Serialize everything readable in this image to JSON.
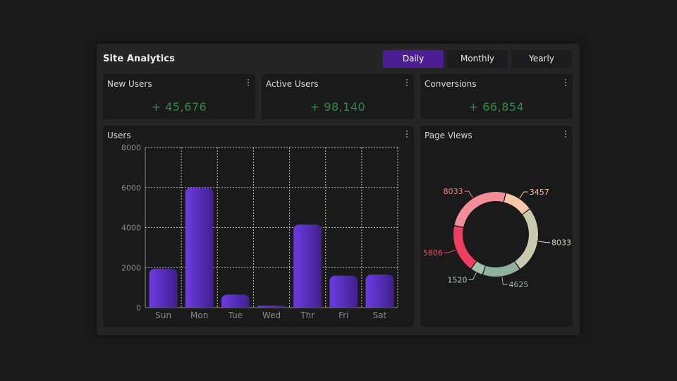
{
  "dashboard": {
    "title": "Site Analytics",
    "tabs": [
      {
        "label": "Daily",
        "active": true
      },
      {
        "label": "Monthly",
        "active": false
      },
      {
        "label": "Yearly",
        "active": false
      }
    ]
  },
  "stats": [
    {
      "title": "New Users",
      "value": "+ 45,676"
    },
    {
      "title": "Active Users",
      "value": "+ 98,140"
    },
    {
      "title": "Conversions",
      "value": "+ 66,854"
    }
  ],
  "users_card": {
    "title": "Users"
  },
  "pageviews_card": {
    "title": "Page Views"
  },
  "colors": {
    "accent": "#4c1d95",
    "bar_top": "#6d3be3",
    "bar_bottom": "#3f1f8e",
    "positive": "#2f8a4a"
  },
  "chart_data": [
    {
      "type": "bar",
      "categories": [
        "Sun",
        "Mon",
        "Tue",
        "Wed",
        "Thr",
        "Fri",
        "Sat"
      ],
      "values": [
        1950,
        6000,
        650,
        100,
        4150,
        1600,
        1650
      ],
      "ylim": [
        0,
        8000
      ],
      "yticks": [
        "0",
        "2000",
        "4000",
        "6000",
        "8000"
      ],
      "grid": true,
      "grid_style": "dotted"
    },
    {
      "type": "pie",
      "variant": "donut",
      "slices": [
        {
          "value": 8033,
          "label": "8033",
          "color": "#c8c9ae"
        },
        {
          "value": 4625,
          "label": "4625",
          "color": "#8fb1a0"
        },
        {
          "value": 1520,
          "label": "1520",
          "color": "#9fc3ad"
        },
        {
          "value": 5806,
          "label": "5806",
          "color": "#ef3d60"
        },
        {
          "value": 8033,
          "label": "8033",
          "color": "#f48d9a"
        },
        {
          "value": 3457,
          "label": "3457",
          "color": "#f8c8a8"
        }
      ],
      "label_colors": [
        "#d6d6c6",
        "#9fb8aa",
        "#a8c8b4",
        "#f0506a",
        "#f4858f",
        "#f6c0a0"
      ]
    }
  ]
}
